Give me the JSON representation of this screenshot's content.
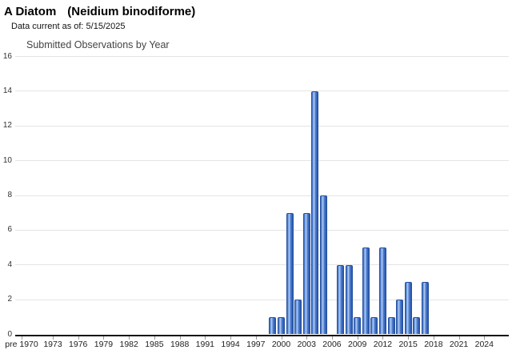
{
  "page": {
    "title_common": "A Diatom",
    "title_scientific": "(Neidium binodiforme)",
    "data_current_label": "Data current as of: 5/15/2025"
  },
  "chart_data": {
    "type": "bar",
    "title": "Submitted Observations by Year",
    "xlabel": "",
    "ylabel": "",
    "ylim": [
      0,
      16
    ],
    "y_ticks": [
      0,
      2,
      4,
      6,
      8,
      10,
      12,
      14,
      16
    ],
    "grid": "horizontal-light-gray",
    "legend_position": "none",
    "x_tick_labels": [
      "pre 1970",
      "1973",
      "1976",
      "1979",
      "1982",
      "1985",
      "1988",
      "1991",
      "1994",
      "1997",
      "2000",
      "2003",
      "2006",
      "2009",
      "2012",
      "2015",
      "2018",
      "2021",
      "2024"
    ],
    "x_axis_note": "Categories run from 'pre 1970' through 2025 in 1-year bins; every year not listed in values_by_year has 0 observations",
    "values_by_year": {
      "1999": 1,
      "2000": 1,
      "2001": 7,
      "2002": 2,
      "2003": 7,
      "2004": 14,
      "2005": 8,
      "2007": 4,
      "2008": 4,
      "2009": 1,
      "2010": 5,
      "2011": 1,
      "2012": 5,
      "2013": 1,
      "2014": 2,
      "2015": 3,
      "2016": 1,
      "2017": 3
    },
    "colors": {
      "bar_fill": "#3f6fc4",
      "bar_highlight": "#b9d0f2",
      "bar_border": "#24509e",
      "gridline": "#e4e4e4",
      "axis": "#111111",
      "chart_title_text": "#444444"
    }
  }
}
